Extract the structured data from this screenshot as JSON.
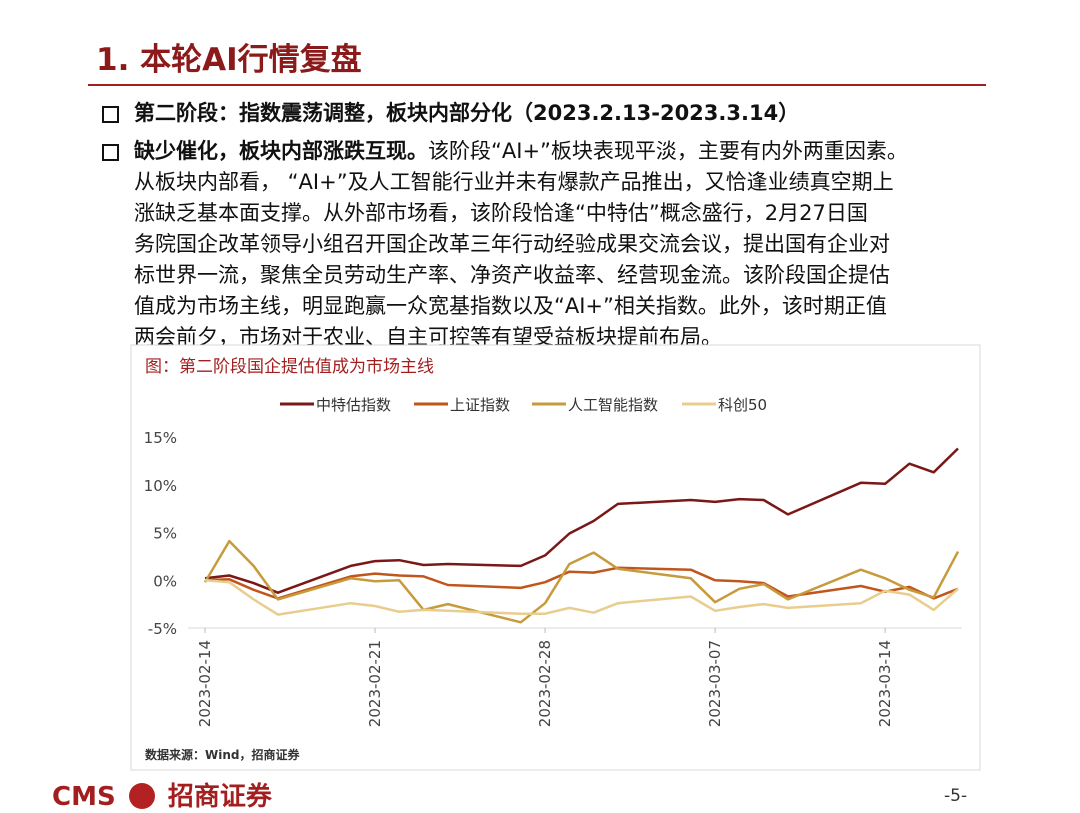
{
  "header": {
    "title": "1. 本轮AI行情复盘"
  },
  "bullets": [
    {
      "text": "第二阶段：指数震荡调整，板块内部分化（2023.2.13-2023.3.14）"
    },
    {
      "lead": "缺少催化，板块内部涨跌互现。",
      "lines": [
        "该阶段“AI+”板块表现平淡，主要有内外两重因素。",
        "从板块内部看， “AI+”及人工智能行业并未有爆款产品推出，又恰逢业绩真空期上",
        "涨缺乏基本面支撑。从外部市场看，该阶段恰逢“中特估”概念盛行，2月27日国",
        "务院国企改革领导小组召开国企改革三年行动经验成果交流会议，提出国有企业对",
        "标世界一流，聚焦全员劳动生产率、净资产收益率、经营现金流。该阶段国企提估",
        "值成为市场主线，明显跑赢一众宽基指数以及“AI+”相关指数。此外，该时期正值",
        "两会前夕，市场对于农业、自主可控等有望受益板块提前布局。"
      ]
    }
  ],
  "chart_data": {
    "type": "line",
    "title": "图：第二阶段国企提估值成为市场主线",
    "source": "数据来源：Wind，招商证券",
    "x": [
      "2023-02-14",
      "2023-02-15",
      "2023-02-16",
      "2023-02-17",
      "2023-02-20",
      "2023-02-21",
      "2023-02-22",
      "2023-02-23",
      "2023-02-24",
      "2023-02-27",
      "2023-02-28",
      "2023-03-01",
      "2023-03-02",
      "2023-03-03",
      "2023-03-06",
      "2023-03-07",
      "2023-03-08",
      "2023-03-09",
      "2023-03-10",
      "2023-03-13",
      "2023-03-14",
      "2023-03-15",
      "2023-03-16",
      "2023-03-17"
    ],
    "xlim": [
      "2023-02-14",
      "2023-03-17"
    ],
    "xticks": [
      "2023-02-14",
      "2023-02-21",
      "2023-02-28",
      "2023-03-07",
      "2023-03-14"
    ],
    "ylim": [
      -5,
      15
    ],
    "yticks": [
      {
        "value": -5,
        "label": "-5%"
      },
      {
        "value": 0,
        "label": "0%"
      },
      {
        "value": 5,
        "label": "5%"
      },
      {
        "value": 10,
        "label": "10%"
      },
      {
        "value": 15,
        "label": "15%"
      }
    ],
    "grid": false,
    "legend": "top",
    "series": [
      {
        "name": "中特估指数",
        "color": "#7a1717",
        "values": [
          0.2,
          0.5,
          -0.3,
          -1.3,
          1.5,
          2.0,
          2.1,
          1.6,
          1.7,
          1.5,
          2.6,
          4.9,
          6.2,
          8.0,
          8.4,
          8.2,
          8.5,
          8.4,
          6.9,
          10.2,
          10.1,
          12.2,
          11.3,
          13.8
        ]
      },
      {
        "name": "上证指数",
        "color": "#c0561c",
        "values": [
          0.0,
          0.1,
          -1.0,
          -1.9,
          0.4,
          0.7,
          0.5,
          0.4,
          -0.5,
          -0.8,
          -0.2,
          0.9,
          0.8,
          1.3,
          1.1,
          0.0,
          -0.1,
          -0.3,
          -1.7,
          -0.6,
          -1.2,
          -0.7,
          -1.9,
          -0.9
        ]
      },
      {
        "name": "人工智能指数",
        "color": "#c79a3c",
        "values": [
          -0.2,
          4.1,
          1.5,
          -2.0,
          0.2,
          -0.1,
          0.0,
          -3.1,
          -2.5,
          -4.4,
          -2.4,
          1.7,
          2.9,
          1.2,
          0.2,
          -2.3,
          -0.9,
          -0.4,
          -2.0,
          1.1,
          0.2,
          -1.0,
          -1.8,
          3.0
        ]
      },
      {
        "name": "科创50",
        "color": "#e8cd8e",
        "values": [
          0.0,
          -0.2,
          -2.0,
          -3.6,
          -2.4,
          -2.7,
          -3.3,
          -3.1,
          -3.2,
          -3.5,
          -3.5,
          -2.9,
          -3.4,
          -2.4,
          -1.7,
          -3.2,
          -2.8,
          -2.5,
          -2.9,
          -2.4,
          -1.1,
          -1.5,
          -3.1,
          -0.9
        ]
      }
    ]
  },
  "footer": {
    "logo": "CMS",
    "company": "招商证券",
    "page": "-5-"
  }
}
